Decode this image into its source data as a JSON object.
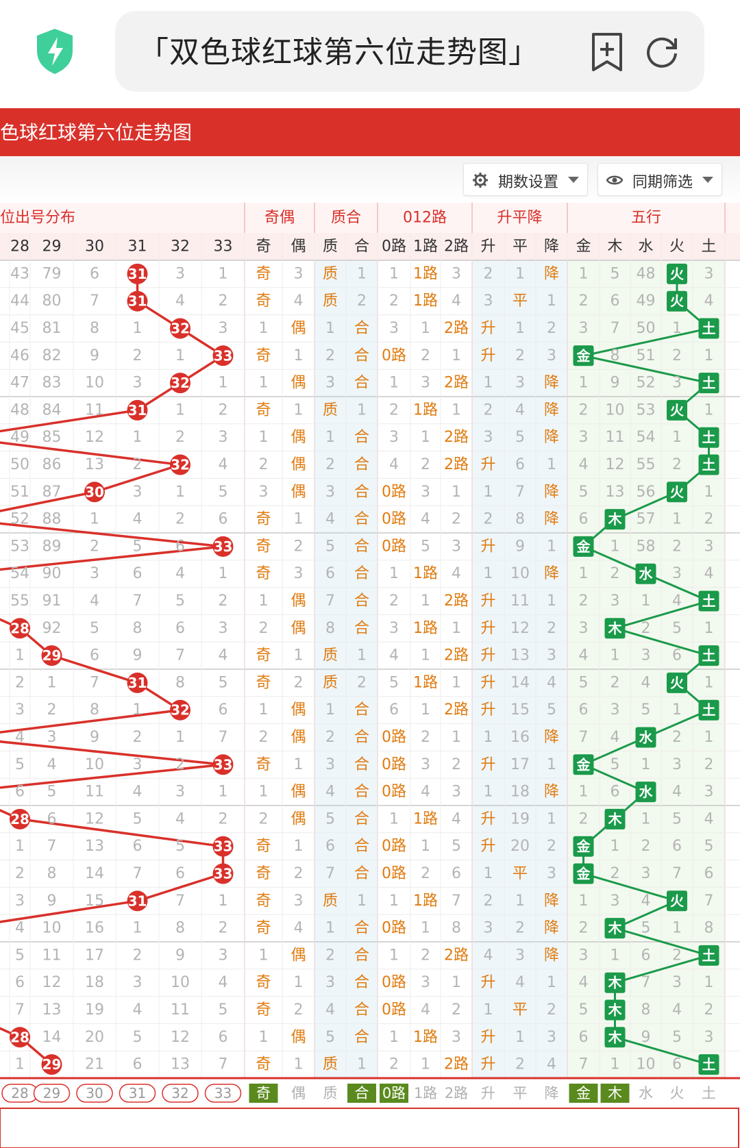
{
  "browser": {
    "title": "「双色球红球第六位走势图」",
    "icons": [
      "shield-bolt-icon",
      "add-bookmark-icon",
      "refresh-icon"
    ]
  },
  "page": {
    "banner_title": "色球红球第六位走势图",
    "settings_label": "期数设置",
    "filter_label": "同期筛选"
  },
  "groups": {
    "dist": "位出号分布",
    "parity": "奇偶",
    "prime": "质合",
    "route": "012路",
    "trend": "升平降",
    "wuxing": "五行"
  },
  "headers": [
    "28",
    "29",
    "30",
    "31",
    "32",
    "33",
    "奇",
    "偶",
    "质",
    "合",
    "0路",
    "1路",
    "2路",
    "升",
    "平",
    "降",
    "金",
    "木",
    "水",
    "火",
    "土"
  ],
  "colors": {
    "red": "#d9302a",
    "green": "#1a9a4a",
    "orange": "#e07b10",
    "gray": "#b4b4b4"
  },
  "rows": [
    [
      "43",
      "79",
      "6",
      "31",
      "3",
      "1",
      "奇",
      "3",
      "质",
      "1",
      "1",
      "1路",
      "3",
      "2",
      "1",
      "降",
      "1",
      "5",
      "48",
      "火",
      "3"
    ],
    [
      "44",
      "80",
      "7",
      "31",
      "4",
      "2",
      "奇",
      "4",
      "质",
      "2",
      "2",
      "1路",
      "4",
      "3",
      "平",
      "1",
      "2",
      "6",
      "49",
      "火",
      "4"
    ],
    [
      "45",
      "81",
      "8",
      "1",
      "32",
      "3",
      "1",
      "偶",
      "1",
      "合",
      "3",
      "1",
      "2路",
      "升",
      "1",
      "2",
      "3",
      "7",
      "50",
      "1",
      "土"
    ],
    [
      "46",
      "82",
      "9",
      "2",
      "1",
      "33",
      "奇",
      "1",
      "2",
      "合",
      "0路",
      "2",
      "1",
      "升",
      "2",
      "3",
      "金",
      "8",
      "51",
      "2",
      "1"
    ],
    [
      "47",
      "83",
      "10",
      "3",
      "32",
      "1",
      "1",
      "偶",
      "3",
      "合",
      "1",
      "3",
      "2路",
      "1",
      "3",
      "降",
      "1",
      "9",
      "52",
      "3",
      "土"
    ],
    [
      "48",
      "84",
      "11",
      "31",
      "1",
      "2",
      "奇",
      "1",
      "质",
      "1",
      "2",
      "1路",
      "1",
      "2",
      "4",
      "降",
      "2",
      "10",
      "53",
      "火",
      "1"
    ],
    [
      "49",
      "85",
      "12",
      "1",
      "2",
      "3",
      "1",
      "偶",
      "1",
      "合",
      "3",
      "1",
      "2路",
      "3",
      "5",
      "降",
      "3",
      "11",
      "54",
      "1",
      "土"
    ],
    [
      "50",
      "86",
      "13",
      "2",
      "32",
      "4",
      "2",
      "偶",
      "2",
      "合",
      "4",
      "2",
      "2路",
      "升",
      "6",
      "1",
      "4",
      "12",
      "55",
      "2",
      "土"
    ],
    [
      "51",
      "87",
      "30",
      "3",
      "1",
      "5",
      "3",
      "偶",
      "3",
      "合",
      "0路",
      "3",
      "1",
      "1",
      "7",
      "降",
      "5",
      "13",
      "56",
      "火",
      "1"
    ],
    [
      "52",
      "88",
      "1",
      "4",
      "2",
      "6",
      "奇",
      "1",
      "4",
      "合",
      "0路",
      "4",
      "2",
      "2",
      "8",
      "降",
      "6",
      "木",
      "57",
      "1",
      "2"
    ],
    [
      "53",
      "89",
      "2",
      "5",
      "6",
      "33",
      "奇",
      "2",
      "5",
      "合",
      "0路",
      "5",
      "3",
      "升",
      "9",
      "1",
      "金",
      "1",
      "58",
      "2",
      "3"
    ],
    [
      "54",
      "90",
      "3",
      "6",
      "4",
      "1",
      "奇",
      "3",
      "6",
      "合",
      "1",
      "1路",
      "4",
      "1",
      "10",
      "降",
      "1",
      "2",
      "水",
      "3",
      "4"
    ],
    [
      "55",
      "91",
      "4",
      "7",
      "5",
      "2",
      "1",
      "偶",
      "7",
      "合",
      "2",
      "1",
      "2路",
      "升",
      "11",
      "1",
      "2",
      "3",
      "1",
      "4",
      "土"
    ],
    [
      "28",
      "92",
      "5",
      "8",
      "6",
      "3",
      "2",
      "偶",
      "8",
      "合",
      "3",
      "1路",
      "1",
      "升",
      "12",
      "2",
      "3",
      "木",
      "2",
      "5",
      "1"
    ],
    [
      "1",
      "29",
      "6",
      "9",
      "7",
      "4",
      "奇",
      "1",
      "质",
      "1",
      "4",
      "1",
      "2路",
      "升",
      "13",
      "3",
      "4",
      "1",
      "3",
      "6",
      "土"
    ],
    [
      "2",
      "1",
      "7",
      "31",
      "8",
      "5",
      "奇",
      "2",
      "质",
      "2",
      "5",
      "1路",
      "1",
      "升",
      "14",
      "4",
      "5",
      "2",
      "4",
      "火",
      "1"
    ],
    [
      "3",
      "2",
      "8",
      "1",
      "32",
      "6",
      "1",
      "偶",
      "1",
      "合",
      "6",
      "1",
      "2路",
      "升",
      "15",
      "5",
      "6",
      "3",
      "5",
      "1",
      "土"
    ],
    [
      "4",
      "3",
      "9",
      "2",
      "1",
      "7",
      "2",
      "偶",
      "2",
      "合",
      "0路",
      "2",
      "1",
      "1",
      "16",
      "降",
      "7",
      "4",
      "水",
      "2",
      "1"
    ],
    [
      "5",
      "4",
      "10",
      "3",
      "2",
      "33",
      "奇",
      "1",
      "3",
      "合",
      "0路",
      "3",
      "2",
      "升",
      "17",
      "1",
      "金",
      "5",
      "1",
      "3",
      "2"
    ],
    [
      "6",
      "5",
      "11",
      "4",
      "3",
      "1",
      "1",
      "偶",
      "4",
      "合",
      "0路",
      "4",
      "3",
      "1",
      "18",
      "降",
      "1",
      "6",
      "水",
      "4",
      "3"
    ],
    [
      "28",
      "6",
      "12",
      "5",
      "4",
      "2",
      "2",
      "偶",
      "5",
      "合",
      "1",
      "1路",
      "4",
      "升",
      "19",
      "1",
      "2",
      "木",
      "1",
      "5",
      "4"
    ],
    [
      "1",
      "7",
      "13",
      "6",
      "5",
      "33",
      "奇",
      "1",
      "6",
      "合",
      "0路",
      "1",
      "5",
      "升",
      "20",
      "2",
      "金",
      "1",
      "2",
      "6",
      "5"
    ],
    [
      "2",
      "8",
      "14",
      "7",
      "6",
      "33",
      "奇",
      "2",
      "7",
      "合",
      "0路",
      "2",
      "6",
      "1",
      "平",
      "3",
      "金",
      "2",
      "3",
      "7",
      "6"
    ],
    [
      "3",
      "9",
      "15",
      "31",
      "7",
      "1",
      "奇",
      "3",
      "质",
      "1",
      "1",
      "1路",
      "7",
      "2",
      "1",
      "降",
      "1",
      "3",
      "4",
      "火",
      "7"
    ],
    [
      "4",
      "10",
      "16",
      "1",
      "8",
      "2",
      "奇",
      "4",
      "1",
      "合",
      "0路",
      "1",
      "8",
      "3",
      "2",
      "降",
      "2",
      "木",
      "5",
      "1",
      "8"
    ],
    [
      "5",
      "11",
      "17",
      "2",
      "9",
      "3",
      "1",
      "偶",
      "2",
      "合",
      "1",
      "2",
      "2路",
      "4",
      "3",
      "降",
      "3",
      "1",
      "6",
      "2",
      "土"
    ],
    [
      "6",
      "12",
      "18",
      "3",
      "10",
      "4",
      "奇",
      "1",
      "3",
      "合",
      "0路",
      "3",
      "1",
      "升",
      "4",
      "1",
      "4",
      "木",
      "7",
      "3",
      "1"
    ],
    [
      "7",
      "13",
      "19",
      "4",
      "11",
      "5",
      "奇",
      "2",
      "4",
      "合",
      "0路",
      "4",
      "2",
      "1",
      "平",
      "2",
      "5",
      "木",
      "8",
      "4",
      "2"
    ],
    [
      "28",
      "14",
      "20",
      "5",
      "12",
      "6",
      "1",
      "偶",
      "5",
      "合",
      "1",
      "1路",
      "3",
      "升",
      "1",
      "3",
      "6",
      "木",
      "9",
      "5",
      "3"
    ],
    [
      "1",
      "29",
      "21",
      "6",
      "13",
      "7",
      "奇",
      "1",
      "质",
      "1",
      "2",
      "1",
      "2路",
      "升",
      "2",
      "4",
      "7",
      "1",
      "10",
      "6",
      "土"
    ]
  ],
  "ball_values": [
    "31",
    "31",
    "32",
    "33",
    "32",
    "31",
    "2",
    "32",
    "30",
    "1",
    "33",
    "1",
    "5",
    "28",
    "29",
    "31",
    "32",
    "3",
    "33",
    "4",
    "28",
    "33",
    "33",
    "31",
    "1",
    "3",
    "4",
    "4",
    "28",
    "29"
  ],
  "wuxing_values": [
    "火",
    "火",
    "土",
    "金",
    "土",
    "火",
    "土",
    "土",
    "火",
    "木",
    "金",
    "水",
    "土",
    "木",
    "土",
    "火",
    "土",
    "水",
    "金",
    "水",
    "木",
    "金",
    "金",
    "火",
    "木",
    "土",
    "木",
    "木",
    "木",
    "土"
  ],
  "footer": [
    "28",
    "29",
    "30",
    "31",
    "32",
    "33",
    "奇",
    "偶",
    "质",
    "合",
    "0路",
    "1路",
    "2路",
    "升",
    "平",
    "降",
    "金",
    "木",
    "水",
    "火",
    "土"
  ],
  "footer_selected": [
    "奇",
    "合",
    "0路",
    "金",
    "木"
  ]
}
